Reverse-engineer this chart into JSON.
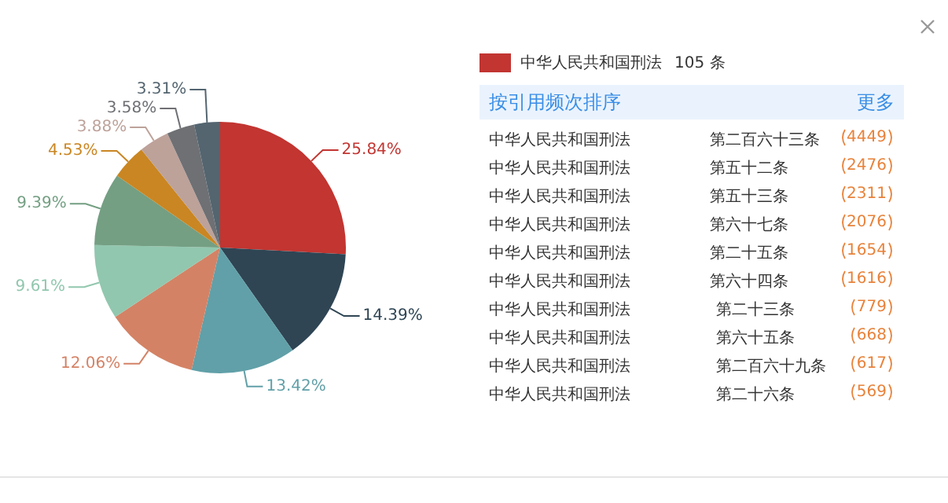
{
  "chart_data": [
    {
      "type": "pie",
      "categories": [
        null,
        null,
        null,
        null,
        null,
        null,
        null,
        null,
        null,
        null
      ],
      "values": [
        25.84,
        14.39,
        13.42,
        12.06,
        9.61,
        9.39,
        4.53,
        3.88,
        3.58,
        3.31
      ],
      "value_labels": [
        "25.84%",
        "14.39%",
        "13.42%",
        "12.06%",
        "9.61%",
        "9.39%",
        "4.53%",
        "3.88%",
        "3.58%",
        "3.31%"
      ],
      "colors": [
        "#c23531",
        "#2f4554",
        "#61a0a8",
        "#d48265",
        "#91c7ae",
        "#749f83",
        "#ca8622",
        "#bda29a",
        "#6e7074",
        "#546570"
      ]
    },
    {
      "type": "other",
      "categories": [
        "第二百六十三条",
        "第五十二条",
        "第五十三条",
        "第六十七条",
        "第二十五条",
        "第六十四条",
        "第二十三条",
        "第六十五条",
        "第二百六十九条",
        "第二十六条"
      ],
      "series": [
        {
          "name": "中华人民共和国刑法",
          "color": "#c23531",
          "values": [
            4449,
            2476,
            2311,
            2076,
            1654,
            1616,
            779,
            668,
            617,
            569
          ]
        }
      ],
      "data_labels": true,
      "legend": "top right",
      "annotations": [
        "105 条",
        "按引用频次排序",
        "更多"
      ]
    }
  ]
}
